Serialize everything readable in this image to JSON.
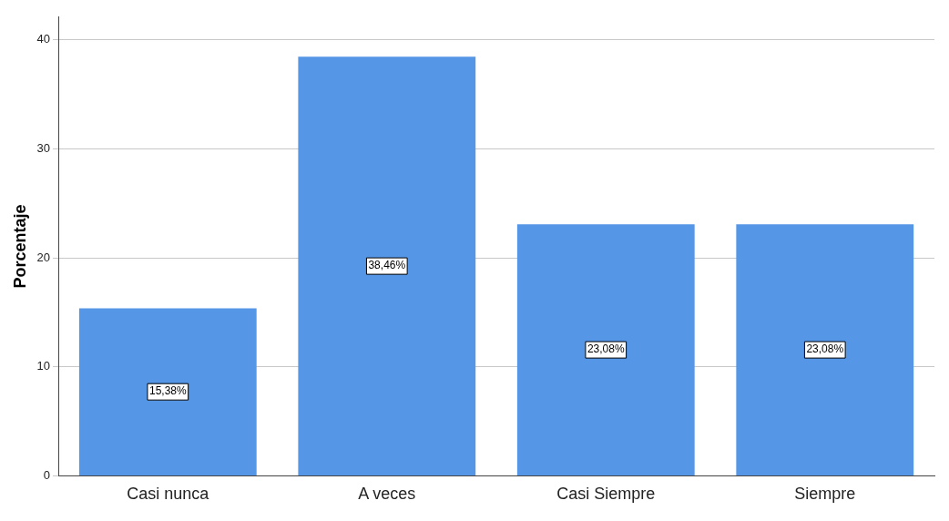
{
  "chart_data": {
    "type": "bar",
    "ylabel": "Porcentaje",
    "categories": [
      "Casi nunca",
      "A veces",
      "Casi Siempre",
      "Siempre"
    ],
    "values": [
      15.38,
      38.46,
      23.08,
      23.08
    ],
    "value_labels": [
      "15,38%",
      "38,46%",
      "23,08%",
      "23,08%"
    ],
    "color": "#5596e6",
    "ylim": [
      0,
      42.1
    ],
    "yticks": [
      0,
      10,
      20,
      30,
      40
    ],
    "grid": "y",
    "legend": false
  }
}
